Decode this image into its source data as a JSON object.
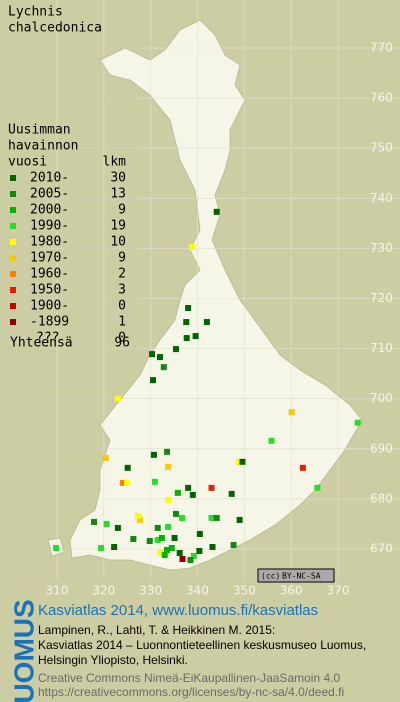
{
  "map": {
    "title": [
      "Lychnis",
      "chalcedonica"
    ],
    "legend_title": [
      "Uusimman",
      "havainnon"
    ],
    "legend_col_period": "vuosi",
    "legend_col_count": "lkm",
    "legend": [
      {
        "label": "2010-",
        "count": 30,
        "color": "#006400"
      },
      {
        "label": "2005-",
        "count": 13,
        "color": "#108a10"
      },
      {
        "label": "2000-",
        "count": 9,
        "color": "#00b400"
      },
      {
        "label": "1990-",
        "count": 19,
        "color": "#2adc2a"
      },
      {
        "label": "1980-",
        "count": 10,
        "color": "#ffff00"
      },
      {
        "label": "1970-",
        "count": 9,
        "color": "#ffc800"
      },
      {
        "label": "1960-",
        "count": 2,
        "color": "#ff8000"
      },
      {
        "label": "1950-",
        "count": 3,
        "color": "#e61e00"
      },
      {
        "label": "1900-",
        "count": 0,
        "color": "#c80000"
      },
      {
        "label": "-1899",
        "count": 1,
        "color": "#8c0000"
      },
      {
        "label": "???",
        "count": 0,
        "color": "#c8c8c8"
      }
    ],
    "total_label": "Yhteensä",
    "total": 96,
    "xlim": [
      310,
      370
    ],
    "ylim": [
      670,
      770
    ],
    "xticks": [
      310,
      320,
      330,
      340,
      350,
      360,
      370
    ],
    "yticks": [
      670,
      680,
      690,
      700,
      710,
      720,
      730,
      740,
      750,
      760,
      770
    ],
    "points": [
      {
        "x": 344.1,
        "y": 737.3,
        "period": 0
      },
      {
        "x": 338.8,
        "y": 730.3,
        "period": 4
      },
      {
        "x": 338.0,
        "y": 718.1,
        "period": 0
      },
      {
        "x": 337.6,
        "y": 715.3,
        "period": 0
      },
      {
        "x": 342.0,
        "y": 715.3,
        "period": 0
      },
      {
        "x": 339.6,
        "y": 712.5,
        "period": 0
      },
      {
        "x": 335.4,
        "y": 709.9,
        "period": 0
      },
      {
        "x": 330.3,
        "y": 708.9,
        "period": 0
      },
      {
        "x": 332.0,
        "y": 708.3,
        "period": 0
      },
      {
        "x": 332.8,
        "y": 706.3,
        "period": 1
      },
      {
        "x": 330.5,
        "y": 703.7,
        "period": 0
      },
      {
        "x": 337.7,
        "y": 712.1,
        "period": 0
      },
      {
        "x": 323.0,
        "y": 700.0,
        "period": 4
      },
      {
        "x": 360.1,
        "y": 697.3,
        "period": 5
      },
      {
        "x": 374.2,
        "y": 695.2,
        "period": 3
      },
      {
        "x": 355.8,
        "y": 691.6,
        "period": 3
      },
      {
        "x": 348.8,
        "y": 687.4,
        "period": 4
      },
      {
        "x": 349.6,
        "y": 687.4,
        "period": 0
      },
      {
        "x": 362.5,
        "y": 686.2,
        "period": 7
      },
      {
        "x": 320.4,
        "y": 688.2,
        "period": 5
      },
      {
        "x": 325.1,
        "y": 686.2,
        "period": 0
      },
      {
        "x": 333.7,
        "y": 686.4,
        "period": 5
      },
      {
        "x": 330.7,
        "y": 688.8,
        "period": 0
      },
      {
        "x": 333.5,
        "y": 689.4,
        "period": 1
      },
      {
        "x": 324.1,
        "y": 683.2,
        "period": 6
      },
      {
        "x": 325.0,
        "y": 683.2,
        "period": 4
      },
      {
        "x": 330.9,
        "y": 683.4,
        "period": 3
      },
      {
        "x": 338.0,
        "y": 682.2,
        "period": 0
      },
      {
        "x": 339.0,
        "y": 680.8,
        "period": 0
      },
      {
        "x": 343.0,
        "y": 682.2,
        "period": 7
      },
      {
        "x": 335.8,
        "y": 681.2,
        "period": 2
      },
      {
        "x": 333.7,
        "y": 679.8,
        "period": 4
      },
      {
        "x": 347.3,
        "y": 681.0,
        "period": 0
      },
      {
        "x": 365.6,
        "y": 682.2,
        "period": 3
      },
      {
        "x": 327.7,
        "y": 675.8,
        "period": 5
      },
      {
        "x": 327.3,
        "y": 676.6,
        "period": 4
      },
      {
        "x": 336.7,
        "y": 676.2,
        "period": 3
      },
      {
        "x": 335.4,
        "y": 677.0,
        "period": 1
      },
      {
        "x": 343.0,
        "y": 676.2,
        "period": 3
      },
      {
        "x": 344.1,
        "y": 676.2,
        "period": 1
      },
      {
        "x": 349.0,
        "y": 675.8,
        "period": 0
      },
      {
        "x": 317.9,
        "y": 675.4,
        "period": 1
      },
      {
        "x": 320.6,
        "y": 675.0,
        "period": 3
      },
      {
        "x": 323.0,
        "y": 674.2,
        "period": 0
      },
      {
        "x": 331.5,
        "y": 674.2,
        "period": 1
      },
      {
        "x": 333.7,
        "y": 674.4,
        "period": 3
      },
      {
        "x": 326.3,
        "y": 672.0,
        "period": 1
      },
      {
        "x": 329.8,
        "y": 671.6,
        "period": 1
      },
      {
        "x": 331.5,
        "y": 671.8,
        "period": 3
      },
      {
        "x": 332.4,
        "y": 672.2,
        "period": 2
      },
      {
        "x": 335.1,
        "y": 672.2,
        "period": 0
      },
      {
        "x": 334.5,
        "y": 670.2,
        "period": 2
      },
      {
        "x": 333.5,
        "y": 669.8,
        "period": 2
      },
      {
        "x": 332.0,
        "y": 669.4,
        "period": 4
      },
      {
        "x": 333.0,
        "y": 668.8,
        "period": 2
      },
      {
        "x": 336.2,
        "y": 669.2,
        "period": 0
      },
      {
        "x": 336.8,
        "y": 668.0,
        "period": 9
      },
      {
        "x": 339.2,
        "y": 668.6,
        "period": 3
      },
      {
        "x": 338.5,
        "y": 667.8,
        "period": 1
      },
      {
        "x": 340.4,
        "y": 669.6,
        "period": 0
      },
      {
        "x": 343.2,
        "y": 670.4,
        "period": 0
      },
      {
        "x": 347.7,
        "y": 670.8,
        "period": 1
      },
      {
        "x": 340.5,
        "y": 673.0,
        "period": 0
      },
      {
        "x": 309.8,
        "y": 670.2,
        "period": 3
      },
      {
        "x": 322.2,
        "y": 670.4,
        "period": 0
      },
      {
        "x": 319.4,
        "y": 670.2,
        "period": 3
      }
    ],
    "license_badge": "BY-NC-SA",
    "license_badge_cc": "(cc)"
  },
  "footer": {
    "brand": "LUOMUS",
    "headline": "Kasviatlas 2014, www.luomus.fi/kasviatlas",
    "citation": [
      "Lampinen, R., Lahti, T. & Heikkinen M. 2015:",
      "Kasviatlas 2014 – Luonnontieteellinen keskusmuseo Luomus,",
      "Helsingin Yliopisto, Helsinki."
    ],
    "license": [
      "Creative Commons Nimeä-EiKaupallinen-JaaSamoin 4.0",
      "https://creativecommons.org/licenses/by-nc-sa/4.0/deed.fi"
    ]
  }
}
